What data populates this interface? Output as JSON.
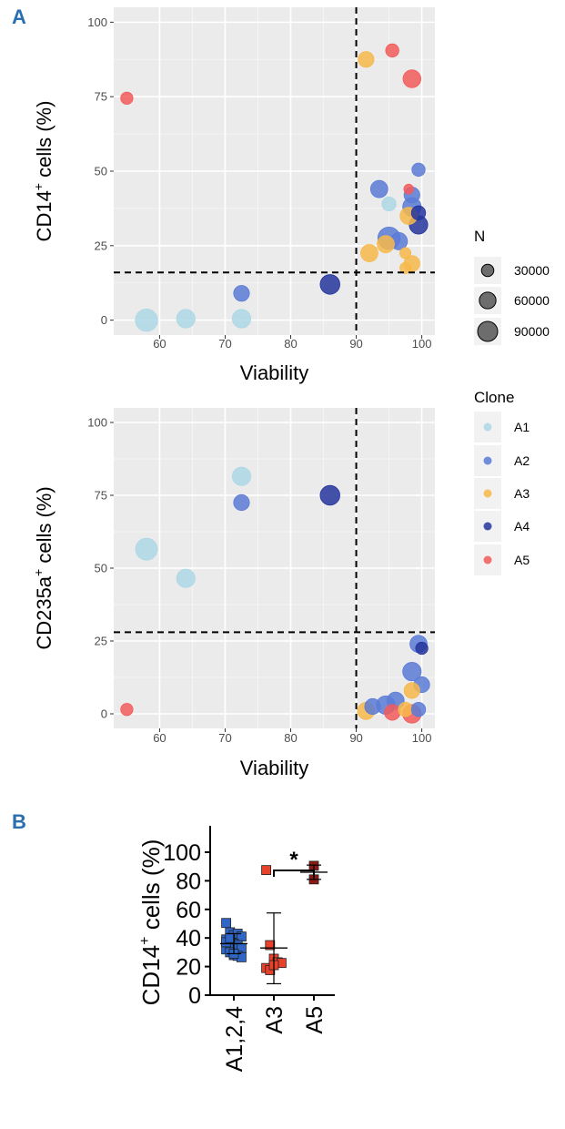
{
  "panel_labels": {
    "a": "A",
    "b": "B"
  },
  "colors": {
    "A1": "#add8e6",
    "A2": "#5b7bd6",
    "A3": "#f7b84a",
    "A4": "#24359c",
    "A5": "#f25a5a",
    "panel_bg": "#ebebeb",
    "grid": "#ffffff",
    "b_group1": "#2f66c7",
    "b_group2": "#e8422c",
    "b_group3": "#8c1a12",
    "panel_label_color": "#2a6fb0"
  },
  "legend": {
    "size_title": "N",
    "size_entries": [
      "30000",
      "60000",
      "90000"
    ],
    "size_values": [
      30000,
      60000,
      90000
    ],
    "color_title": "Clone",
    "color_entries": [
      "A1",
      "A2",
      "A3",
      "A4",
      "A5"
    ]
  },
  "chart_data": [
    {
      "type": "scatter",
      "panel": "A-top",
      "xlabel": "Viability",
      "ylabel": "CD14+ cells (%)",
      "ylabel_main": "CD14",
      "ylabel_sup": "+",
      "ylabel_rest": " cells (%)",
      "xlim": [
        53,
        102
      ],
      "ylim": [
        -5,
        105
      ],
      "xticks": [
        60,
        70,
        80,
        90,
        100
      ],
      "yticks": [
        0,
        25,
        50,
        75,
        100
      ],
      "vline": 90,
      "hline": 16,
      "grid": true,
      "points": [
        {
          "x": 58,
          "y": 0,
          "n": 95000,
          "clone": "A1"
        },
        {
          "x": 64,
          "y": 0.5,
          "n": 60000,
          "clone": "A1"
        },
        {
          "x": 72.5,
          "y": 0.5,
          "n": 60000,
          "clone": "A1"
        },
        {
          "x": 72.5,
          "y": 9,
          "n": 40000,
          "clone": "A2"
        },
        {
          "x": 86,
          "y": 12,
          "n": 70000,
          "clone": "A4"
        },
        {
          "x": 55,
          "y": 74.5,
          "n": 20000,
          "clone": "A5"
        },
        {
          "x": 91.5,
          "y": 87.5,
          "n": 40000,
          "clone": "A3"
        },
        {
          "x": 95.5,
          "y": 90.5,
          "n": 25000,
          "clone": "A5"
        },
        {
          "x": 98.5,
          "y": 81,
          "n": 55000,
          "clone": "A5"
        },
        {
          "x": 93.5,
          "y": 44,
          "n": 50000,
          "clone": "A2"
        },
        {
          "x": 99.5,
          "y": 50.5,
          "n": 25000,
          "clone": "A2"
        },
        {
          "x": 95,
          "y": 39,
          "n": 30000,
          "clone": "A1"
        },
        {
          "x": 98,
          "y": 44,
          "n": 10000,
          "clone": "A5"
        },
        {
          "x": 98.5,
          "y": 42,
          "n": 40000,
          "clone": "A2"
        },
        {
          "x": 98.5,
          "y": 38,
          "n": 60000,
          "clone": "A2"
        },
        {
          "x": 99.5,
          "y": 36,
          "n": 30000,
          "clone": "A4"
        },
        {
          "x": 98,
          "y": 35,
          "n": 50000,
          "clone": "A3"
        },
        {
          "x": 99.5,
          "y": 32,
          "n": 60000,
          "clone": "A4"
        },
        {
          "x": 95,
          "y": 27.5,
          "n": 95000,
          "clone": "A2"
        },
        {
          "x": 96.5,
          "y": 26.5,
          "n": 50000,
          "clone": "A2"
        },
        {
          "x": 94.5,
          "y": 25.5,
          "n": 50000,
          "clone": "A3"
        },
        {
          "x": 92,
          "y": 22.5,
          "n": 50000,
          "clone": "A3"
        },
        {
          "x": 97.5,
          "y": 22.5,
          "n": 15000,
          "clone": "A3"
        },
        {
          "x": 98.5,
          "y": 19,
          "n": 40000,
          "clone": "A3"
        },
        {
          "x": 97.5,
          "y": 17.5,
          "n": 15000,
          "clone": "A3"
        }
      ]
    },
    {
      "type": "scatter",
      "panel": "A-bottom",
      "xlabel": "Viability",
      "ylabel": "CD235a+ cells (%)",
      "ylabel_main": "CD235a",
      "ylabel_sup": "+",
      "ylabel_rest": " cells (%)",
      "xlim": [
        53,
        102
      ],
      "ylim": [
        -5,
        105
      ],
      "xticks": [
        60,
        70,
        80,
        90,
        100
      ],
      "yticks": [
        0,
        25,
        50,
        75,
        100
      ],
      "vline": 90,
      "hline": 28,
      "grid": true,
      "points": [
        {
          "x": 58,
          "y": 56.5,
          "n": 90000,
          "clone": "A1"
        },
        {
          "x": 64,
          "y": 46.5,
          "n": 60000,
          "clone": "A1"
        },
        {
          "x": 72.5,
          "y": 81.5,
          "n": 60000,
          "clone": "A1"
        },
        {
          "x": 72.5,
          "y": 72.5,
          "n": 40000,
          "clone": "A2"
        },
        {
          "x": 86,
          "y": 75,
          "n": 70000,
          "clone": "A4"
        },
        {
          "x": 55,
          "y": 1.5,
          "n": 20000,
          "clone": "A5"
        },
        {
          "x": 99.5,
          "y": 24,
          "n": 50000,
          "clone": "A2"
        },
        {
          "x": 100,
          "y": 22.5,
          "n": 20000,
          "clone": "A4"
        },
        {
          "x": 98.5,
          "y": 14.5,
          "n": 60000,
          "clone": "A2"
        },
        {
          "x": 100,
          "y": 10,
          "n": 40000,
          "clone": "A2"
        },
        {
          "x": 98.5,
          "y": 8,
          "n": 40000,
          "clone": "A3"
        },
        {
          "x": 96,
          "y": 4.5,
          "n": 50000,
          "clone": "A2"
        },
        {
          "x": 94.5,
          "y": 3,
          "n": 60000,
          "clone": "A2"
        },
        {
          "x": 92.5,
          "y": 2.5,
          "n": 40000,
          "clone": "A2"
        },
        {
          "x": 91.5,
          "y": 1,
          "n": 50000,
          "clone": "A3"
        },
        {
          "x": 97.5,
          "y": 1.5,
          "n": 30000,
          "clone": "A3"
        },
        {
          "x": 99.5,
          "y": 1.5,
          "n": 30000,
          "clone": "A2"
        },
        {
          "x": 95.5,
          "y": 0.5,
          "n": 40000,
          "clone": "A5"
        },
        {
          "x": 98.5,
          "y": 0,
          "n": 60000,
          "clone": "A5"
        }
      ]
    },
    {
      "type": "scatter",
      "panel": "B",
      "ylabel": "CD14+ cells (%)",
      "ylabel_main": "CD14",
      "ylabel_sup": "+",
      "ylabel_rest": " cells (%)",
      "categories": [
        "A1,2,4",
        "A3",
        "A5"
      ],
      "ylim": [
        0,
        100
      ],
      "yticks": [
        0,
        20,
        40,
        60,
        80,
        100
      ],
      "grid": false,
      "significance": {
        "label": "*",
        "from": "A3",
        "to": "A5"
      },
      "series": [
        {
          "category": "A1,2,4",
          "mean": 36,
          "sd_low": 29,
          "sd_high": 43,
          "values": [
            50.5,
            44,
            42,
            43,
            41,
            39,
            38,
            36,
            35,
            33,
            32,
            30,
            28,
            27.5,
            26.5,
            37,
            40,
            29
          ]
        },
        {
          "category": "A3",
          "mean": 33,
          "sd_low": 8,
          "sd_high": 57.5,
          "values": [
            87.5,
            35,
            25.5,
            23,
            22.5,
            19,
            17.5,
            21
          ]
        },
        {
          "category": "A5",
          "mean": 86,
          "sd_low": 81,
          "sd_high": 91,
          "values": [
            90.5,
            81
          ]
        }
      ]
    }
  ]
}
